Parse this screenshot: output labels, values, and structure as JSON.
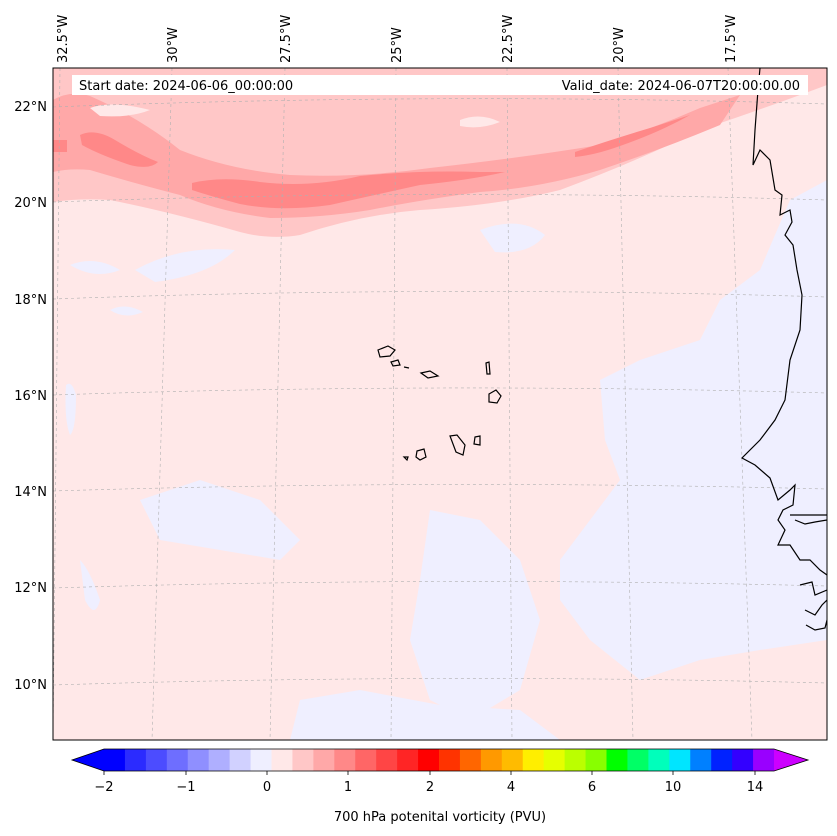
{
  "map": {
    "start_label": "Start date: 2024-06-06_00:00:00",
    "valid_label": "Valid_date: 2024-06-07T20:00:00.00",
    "lon_labels": [
      "32.5°W",
      "30°W",
      "27.5°W",
      "25°W",
      "22.5°W",
      "20°W",
      "17.5°W"
    ],
    "lat_labels": [
      "22°N",
      "20°N",
      "18°N",
      "16°N",
      "14°N",
      "12°N",
      "10°N"
    ]
  },
  "colorbar": {
    "title": "700 hPa potenital vorticity (PVU)",
    "tick_labels": [
      "−2",
      "−1",
      "0",
      "1",
      "2",
      "4",
      "6",
      "10",
      "14"
    ],
    "colors": [
      "#0000ff",
      "#2b2bff",
      "#4c4cff",
      "#6e6eff",
      "#8f8fff",
      "#afafff",
      "#d1d1ff",
      "#efefff",
      "#ffe8e8",
      "#ffc7c7",
      "#ffa8a8",
      "#ff8888",
      "#ff6666",
      "#ff4545",
      "#ff2525",
      "#ff0000",
      "#ff3300",
      "#ff6600",
      "#ff9900",
      "#ffbb00",
      "#ffee00",
      "#e6ff00",
      "#bbff00",
      "#88ff00",
      "#00ff00",
      "#00ff66",
      "#00ffbb",
      "#00e5ff",
      "#0080ff",
      "#0022ff",
      "#3300ff",
      "#9900ff"
    ],
    "under_color": "#0000ff",
    "over_color": "#cc00ff"
  },
  "palette": {
    "background": "#ffe8e8",
    "light_blue": "#efefff",
    "pink": "#ffc7c7",
    "salmon": "#ffa8a8",
    "red": "#ff8888"
  }
}
